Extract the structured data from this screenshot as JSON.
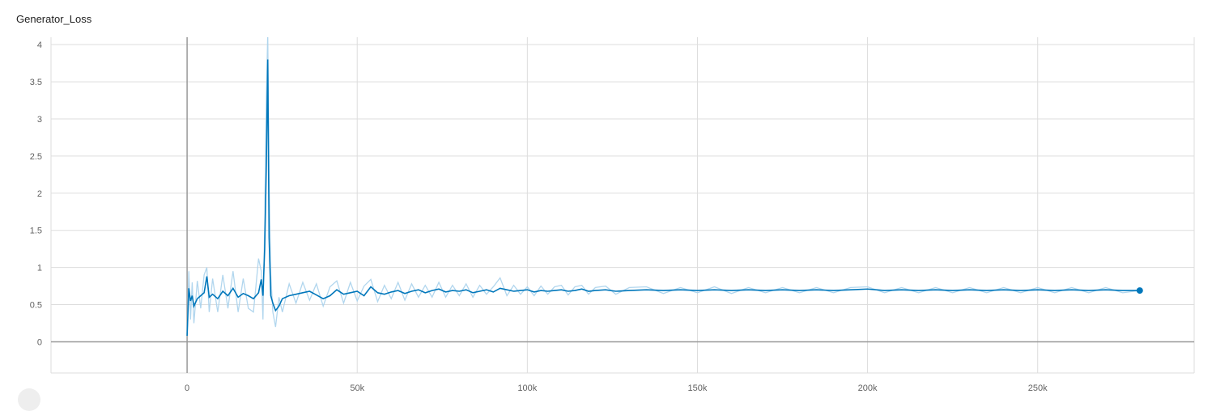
{
  "chart_data": {
    "type": "line",
    "title": "Generator_Loss",
    "xlabel": "",
    "ylabel": "",
    "xlim": [
      -40000,
      296000
    ],
    "ylim": [
      -0.42,
      4.1
    ],
    "x_ticks": [
      0,
      50000,
      100000,
      150000,
      200000,
      250000
    ],
    "x_tick_labels": [
      "0",
      "50k",
      "100k",
      "150k",
      "200k",
      "250k"
    ],
    "y_ticks": [
      0,
      0.5,
      1,
      1.5,
      2,
      2.5,
      3,
      3.5,
      4
    ],
    "y_tick_labels": [
      "0",
      "0.5",
      "1",
      "1.5",
      "2",
      "2.5",
      "3",
      "3.5",
      "4"
    ],
    "grid": true,
    "legend": "none",
    "colors": {
      "smoothed": "#0077bb",
      "raw": "#a8d2ec",
      "grid": "#dddddd",
      "axis": "#999999"
    },
    "series": [
      {
        "x": [
          0,
          500,
          1000,
          1500,
          2000,
          3000,
          4000,
          5000,
          5800,
          6500,
          7500,
          9000,
          10500,
          12000,
          13500,
          15000,
          16500,
          18000,
          19500,
          21000,
          21800,
          22300,
          22800,
          23300,
          23700,
          24100,
          24600,
          25200,
          26000,
          27000,
          28000,
          30000,
          32000,
          34000,
          36000,
          38000,
          40000,
          42000,
          44000,
          46000,
          48000,
          50000,
          52000,
          54000,
          56000,
          58000,
          60000,
          62000,
          64000,
          66000,
          68000,
          70000,
          72000,
          74000,
          76000,
          78000,
          80000,
          82000,
          84000,
          86000,
          88000,
          90000,
          92000,
          94000,
          96000,
          98000,
          100000,
          102000,
          104000,
          106000,
          108000,
          110000,
          112000,
          114000,
          116000,
          118000,
          120000,
          123000,
          126000,
          130000,
          135000,
          140000,
          145000,
          150000,
          155000,
          160000,
          165000,
          170000,
          175000,
          180000,
          185000,
          190000,
          195000,
          200000,
          205000,
          210000,
          215000,
          220000,
          225000,
          230000,
          235000,
          240000,
          245000,
          250000,
          255000,
          260000,
          265000,
          270000,
          275000,
          280000
        ],
        "y": [
          0.08,
          0.72,
          0.55,
          0.62,
          0.48,
          0.58,
          0.62,
          0.66,
          0.88,
          0.6,
          0.64,
          0.58,
          0.68,
          0.62,
          0.72,
          0.6,
          0.65,
          0.62,
          0.58,
          0.66,
          0.84,
          0.62,
          1.25,
          2.4,
          3.8,
          1.4,
          0.62,
          0.52,
          0.42,
          0.48,
          0.58,
          0.62,
          0.64,
          0.66,
          0.68,
          0.63,
          0.58,
          0.62,
          0.7,
          0.64,
          0.66,
          0.68,
          0.62,
          0.74,
          0.66,
          0.64,
          0.67,
          0.69,
          0.65,
          0.68,
          0.7,
          0.66,
          0.69,
          0.71,
          0.67,
          0.69,
          0.68,
          0.7,
          0.66,
          0.68,
          0.7,
          0.67,
          0.72,
          0.7,
          0.68,
          0.69,
          0.7,
          0.67,
          0.69,
          0.68,
          0.69,
          0.7,
          0.68,
          0.69,
          0.71,
          0.68,
          0.69,
          0.7,
          0.68,
          0.69,
          0.7,
          0.69,
          0.7,
          0.69,
          0.7,
          0.69,
          0.7,
          0.69,
          0.7,
          0.69,
          0.7,
          0.69,
          0.7,
          0.71,
          0.69,
          0.7,
          0.69,
          0.7,
          0.69,
          0.7,
          0.69,
          0.7,
          0.69,
          0.7,
          0.69,
          0.7,
          0.69,
          0.7,
          0.69,
          0.69
        ],
        "y_raw": [
          0.08,
          0.95,
          0.3,
          0.8,
          0.25,
          0.82,
          0.45,
          0.9,
          1.0,
          0.4,
          0.85,
          0.4,
          0.9,
          0.45,
          0.95,
          0.4,
          0.85,
          0.45,
          0.4,
          1.12,
          0.95,
          0.3,
          1.6,
          3.3,
          4.15,
          2.2,
          0.9,
          0.4,
          0.2,
          0.6,
          0.4,
          0.78,
          0.52,
          0.8,
          0.56,
          0.78,
          0.48,
          0.74,
          0.82,
          0.52,
          0.8,
          0.55,
          0.75,
          0.84,
          0.54,
          0.76,
          0.58,
          0.8,
          0.56,
          0.78,
          0.6,
          0.76,
          0.6,
          0.8,
          0.6,
          0.76,
          0.62,
          0.78,
          0.6,
          0.76,
          0.64,
          0.74,
          0.86,
          0.62,
          0.76,
          0.64,
          0.74,
          0.62,
          0.75,
          0.64,
          0.74,
          0.76,
          0.63,
          0.74,
          0.76,
          0.64,
          0.73,
          0.75,
          0.64,
          0.73,
          0.74,
          0.65,
          0.73,
          0.66,
          0.74,
          0.65,
          0.73,
          0.66,
          0.73,
          0.66,
          0.73,
          0.66,
          0.73,
          0.74,
          0.66,
          0.73,
          0.66,
          0.73,
          0.66,
          0.73,
          0.66,
          0.73,
          0.66,
          0.73,
          0.66,
          0.73,
          0.66,
          0.73,
          0.66,
          0.69
        ]
      }
    ]
  }
}
